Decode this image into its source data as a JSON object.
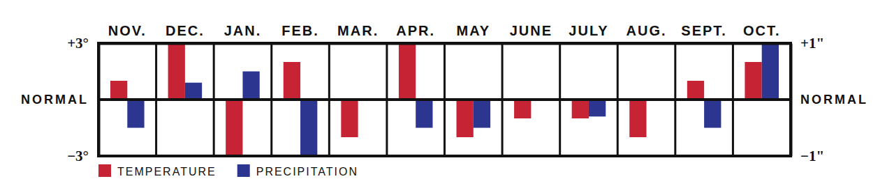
{
  "chart_data": {
    "type": "bar",
    "categories": [
      "NOV.",
      "DEC.",
      "JAN.",
      "FEB.",
      "MAR.",
      "APR.",
      "MAY",
      "JUNE",
      "JULY",
      "AUG.",
      "SEPT.",
      "OCT."
    ],
    "series": [
      {
        "name": "TEMPERATURE",
        "color": "#c62334",
        "values": [
          1,
          3,
          -3,
          2,
          -2,
          3,
          -2,
          -1,
          -1,
          -2,
          1,
          2
        ]
      },
      {
        "name": "PRECIPITATION",
        "color": "#2c3590",
        "axis": "y2",
        "values": [
          -0.5,
          0.3,
          0.5,
          -1,
          0,
          -0.5,
          -0.5,
          0,
          -0.3,
          0,
          -0.5,
          1
        ]
      }
    ],
    "ylim": [
      -3,
      3
    ],
    "yticks": [
      {
        "value": 3,
        "label": "+3°"
      },
      {
        "value": 0,
        "label": "NORMAL"
      },
      {
        "value": -3,
        "label": "−3°"
      }
    ],
    "y2lim": [
      -1,
      1
    ],
    "y2ticks": [
      {
        "value": 1,
        "label": "+1\""
      },
      {
        "value": 0,
        "label": "NORMAL"
      },
      {
        "value": -1,
        "label": "−1\""
      }
    ],
    "legend": "bottom-left",
    "grid": false
  }
}
